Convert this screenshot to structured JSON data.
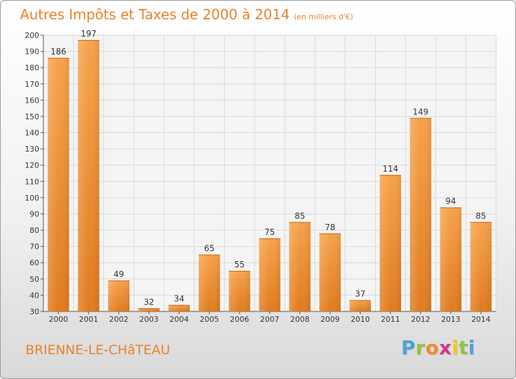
{
  "header": {
    "title": "Autres Impôts et Taxes de 2000 à 2014",
    "subtitle": "(en milliers d'€)"
  },
  "footer": {
    "town": "BRIENNE-LE-CHâTEAU",
    "logo_letters": [
      "P",
      "r",
      "o",
      "x",
      "i",
      "t",
      "i"
    ],
    "logo_colors": [
      "#4aa3d8",
      "#8cc63f",
      "#f28c28",
      "#d8348c",
      "#ffc20e",
      "#8cc63f",
      "#4aa3d8"
    ]
  },
  "colors": {
    "accent": "#e8822a",
    "bar_light": "#f7a24a",
    "bar_dark": "#e07b1f",
    "grid": "#d8d8d8"
  },
  "chart_data": {
    "type": "bar",
    "categories": [
      "2000",
      "2001",
      "2002",
      "2003",
      "2004",
      "2005",
      "2006",
      "2007",
      "2008",
      "2009",
      "2010",
      "2011",
      "2012",
      "2013",
      "2014"
    ],
    "values": [
      186,
      197,
      49,
      32,
      34,
      65,
      55,
      75,
      85,
      78,
      37,
      114,
      149,
      94,
      85
    ],
    "ylim": [
      30,
      200
    ],
    "yticks": [
      30,
      40,
      50,
      60,
      70,
      80,
      90,
      100,
      110,
      120,
      130,
      140,
      150,
      160,
      170,
      180,
      190,
      200
    ],
    "grid": true,
    "data_labels": true,
    "title": "",
    "xlabel": "",
    "ylabel": ""
  }
}
